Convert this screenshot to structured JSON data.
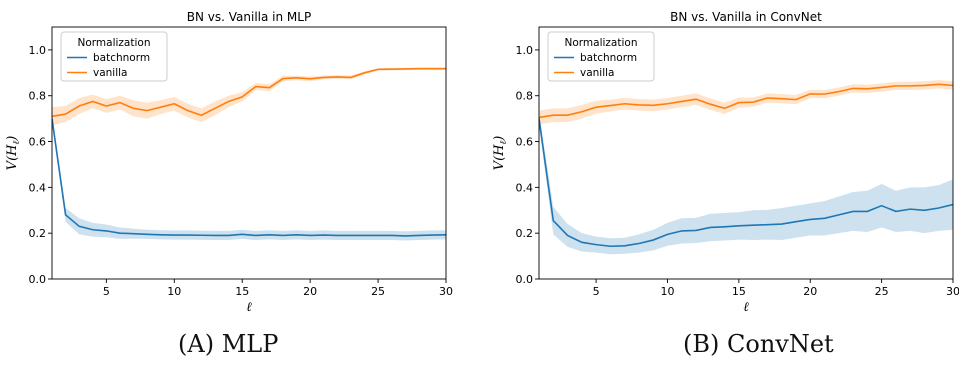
{
  "captions": [
    {
      "tag": "(A)",
      "text": "MLP"
    },
    {
      "tag": "(B)",
      "text": "ConvNet"
    }
  ],
  "colors": {
    "batchnorm": "#1f77b4",
    "vanilla": "#ff7f0e"
  },
  "chart_data": [
    {
      "type": "line",
      "title": "BN vs. Vanilla in MLP",
      "xlabel": "ℓ",
      "ylabel": "V(H_ℓ)",
      "xlim": [
        1,
        30
      ],
      "ylim": [
        0,
        1.1
      ],
      "xticks": [
        5,
        10,
        15,
        20,
        25,
        30
      ],
      "yticks": [
        0.0,
        0.2,
        0.4,
        0.6,
        0.8,
        1.0
      ],
      "legend": {
        "title": "Normalization",
        "placement": "top-left"
      },
      "x": [
        1,
        2,
        3,
        4,
        5,
        6,
        7,
        8,
        9,
        10,
        11,
        12,
        13,
        14,
        15,
        16,
        17,
        18,
        19,
        20,
        21,
        22,
        23,
        24,
        25,
        26,
        27,
        28,
        29,
        30
      ],
      "series": [
        {
          "name": "batchnorm",
          "values": [
            0.7,
            0.28,
            0.23,
            0.215,
            0.21,
            0.2,
            0.198,
            0.195,
            0.193,
            0.192,
            0.192,
            0.191,
            0.19,
            0.19,
            0.195,
            0.19,
            0.193,
            0.19,
            0.193,
            0.19,
            0.192,
            0.19,
            0.19,
            0.19,
            0.19,
            0.19,
            0.188,
            0.19,
            0.192,
            0.193
          ],
          "band": [
            0.02,
            0.03,
            0.035,
            0.03,
            0.028,
            0.025,
            0.022,
            0.02,
            0.02,
            0.02,
            0.02,
            0.02,
            0.02,
            0.02,
            0.02,
            0.02,
            0.02,
            0.02,
            0.02,
            0.02,
            0.02,
            0.02,
            0.02,
            0.02,
            0.02,
            0.02,
            0.02,
            0.02,
            0.02,
            0.02
          ]
        },
        {
          "name": "vanilla",
          "values": [
            0.71,
            0.72,
            0.755,
            0.775,
            0.755,
            0.77,
            0.745,
            0.735,
            0.75,
            0.765,
            0.735,
            0.715,
            0.745,
            0.775,
            0.795,
            0.84,
            0.835,
            0.875,
            0.878,
            0.874,
            0.88,
            0.882,
            0.88,
            0.9,
            0.915,
            0.916,
            0.917,
            0.918,
            0.918,
            0.918
          ],
          "band": [
            0.04,
            0.035,
            0.035,
            0.03,
            0.03,
            0.03,
            0.035,
            0.035,
            0.03,
            0.03,
            0.03,
            0.03,
            0.03,
            0.025,
            0.02,
            0.015,
            0.015,
            0.012,
            0.01,
            0.01,
            0.008,
            0.008,
            0.008,
            0.006,
            0.005,
            0.005,
            0.005,
            0.005,
            0.005,
            0.005
          ]
        }
      ]
    },
    {
      "type": "line",
      "title": "BN vs. Vanilla in ConvNet",
      "xlabel": "ℓ",
      "ylabel": "V(H_ℓ)",
      "xlim": [
        1,
        30
      ],
      "ylim": [
        0,
        1.1
      ],
      "xticks": [
        5,
        10,
        15,
        20,
        25,
        30
      ],
      "yticks": [
        0.0,
        0.2,
        0.4,
        0.6,
        0.8,
        1.0
      ],
      "legend": {
        "title": "Normalization",
        "placement": "top-left"
      },
      "x": [
        1,
        2,
        3,
        4,
        5,
        6,
        7,
        8,
        9,
        10,
        11,
        12,
        13,
        14,
        15,
        16,
        17,
        18,
        19,
        20,
        21,
        22,
        23,
        24,
        25,
        26,
        27,
        28,
        29,
        30
      ],
      "series": [
        {
          "name": "batchnorm",
          "values": [
            0.7,
            0.255,
            0.19,
            0.16,
            0.15,
            0.143,
            0.145,
            0.155,
            0.17,
            0.195,
            0.21,
            0.212,
            0.225,
            0.228,
            0.232,
            0.235,
            0.237,
            0.24,
            0.25,
            0.26,
            0.265,
            0.28,
            0.295,
            0.295,
            0.32,
            0.295,
            0.305,
            0.3,
            0.31,
            0.325
          ],
          "band": [
            0.03,
            0.06,
            0.05,
            0.04,
            0.035,
            0.035,
            0.035,
            0.04,
            0.045,
            0.05,
            0.055,
            0.055,
            0.06,
            0.06,
            0.06,
            0.065,
            0.065,
            0.07,
            0.07,
            0.07,
            0.075,
            0.08,
            0.085,
            0.09,
            0.095,
            0.09,
            0.095,
            0.1,
            0.1,
            0.11
          ]
        },
        {
          "name": "vanilla",
          "values": [
            0.705,
            0.715,
            0.715,
            0.73,
            0.75,
            0.757,
            0.765,
            0.76,
            0.758,
            0.765,
            0.775,
            0.785,
            0.763,
            0.745,
            0.77,
            0.772,
            0.79,
            0.787,
            0.783,
            0.808,
            0.807,
            0.818,
            0.832,
            0.83,
            0.836,
            0.843,
            0.843,
            0.845,
            0.85,
            0.845
          ],
          "band": [
            0.03,
            0.03,
            0.03,
            0.03,
            0.028,
            0.026,
            0.025,
            0.025,
            0.025,
            0.025,
            0.025,
            0.025,
            0.025,
            0.025,
            0.022,
            0.02,
            0.02,
            0.02,
            0.02,
            0.018,
            0.018,
            0.018,
            0.018,
            0.018,
            0.018,
            0.018,
            0.018,
            0.018,
            0.018,
            0.018
          ]
        }
      ]
    }
  ]
}
